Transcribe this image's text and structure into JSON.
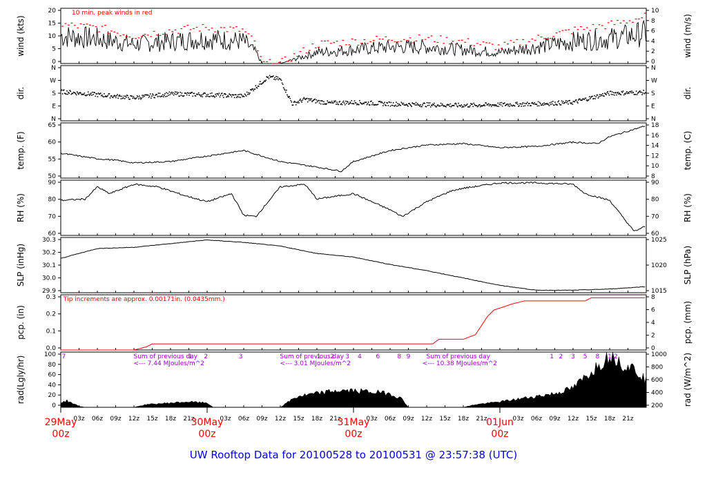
{
  "title": "UW Rooftop Data for 20100528  to  20100531 @ 23:57:38  (UTC)",
  "colors": {
    "axis": "#000000",
    "peak": "#ff0000",
    "pcp": "#ff0000",
    "accent_red": "#ff0000",
    "accent_purple": "#9900cc",
    "title_blue": "#0000ee"
  },
  "time_axis": {
    "hour_labels": [
      "03z",
      "06z",
      "09z",
      "12z",
      "15z",
      "18z",
      "21z"
    ],
    "day_labels": [
      {
        "day": "29May",
        "z": "00z"
      },
      {
        "day": "30May",
        "z": "00z"
      },
      {
        "day": "31May",
        "z": "00z"
      },
      {
        "day": "01Jun",
        "z": "00z"
      }
    ]
  },
  "chart_data": [
    {
      "id": "wind",
      "type": "line",
      "ylabel_left": "wind (kts)",
      "ylabel_right": "wind (m/s)",
      "annotation": "10 min. peak winds in red",
      "ylim": [
        0,
        20
      ],
      "yticks": [
        "0",
        "5",
        "10",
        "15",
        "20"
      ],
      "yticks_right": [
        "0",
        "2",
        "4",
        "6",
        "8",
        "10"
      ],
      "series": [
        {
          "name": "wind",
          "x": [
            0,
            6,
            12,
            18,
            24,
            30,
            32,
            33,
            36,
            42,
            48,
            54,
            60,
            66,
            72,
            78,
            84,
            90,
            96
          ],
          "y": [
            10,
            9,
            7,
            8,
            9,
            8,
            4,
            0,
            0,
            4,
            5,
            6,
            6,
            5,
            4,
            6,
            8,
            9,
            11
          ]
        },
        {
          "name": "10 min. peak winds",
          "x": [
            0,
            6,
            12,
            18,
            24,
            30,
            32,
            33,
            36,
            42,
            48,
            54,
            60,
            66,
            72,
            78,
            84,
            90,
            96
          ],
          "y": [
            14,
            13,
            10,
            12,
            13,
            12,
            7,
            0,
            0,
            7,
            8,
            9,
            9,
            8,
            6,
            9,
            12,
            14,
            17
          ]
        }
      ]
    },
    {
      "id": "direction",
      "type": "scatter",
      "ylabel_left": "dir.",
      "ylabel_right": "dir.",
      "ylim": [
        0,
        360
      ],
      "yticks": [
        "N",
        "E",
        "S",
        "W",
        "N"
      ],
      "series": [
        {
          "name": "dir",
          "x": [
            0,
            6,
            12,
            18,
            24,
            30,
            32,
            34,
            36,
            38,
            40,
            44,
            48,
            54,
            60,
            66,
            72,
            78,
            84,
            90,
            96
          ],
          "y": [
            190,
            170,
            150,
            175,
            170,
            160,
            220,
            285,
            270,
            110,
            140,
            115,
            120,
            110,
            105,
            100,
            105,
            110,
            120,
            180,
            185
          ]
        }
      ]
    },
    {
      "id": "temperature",
      "type": "line",
      "ylabel_left": "temp. (F)",
      "ylabel_right": "temp. (C)",
      "ylim": [
        45,
        65
      ],
      "yticks": [
        "50",
        "55",
        "60",
        "65"
      ],
      "yticks_right": [
        "8",
        "10",
        "12",
        "14",
        "16",
        "18"
      ],
      "series": [
        {
          "name": "temp",
          "x": [
            0,
            6,
            9,
            12,
            18,
            24,
            30,
            33,
            36,
            42,
            46,
            48,
            54,
            60,
            66,
            72,
            78,
            84,
            88,
            90,
            96
          ],
          "y": [
            54,
            52,
            51.5,
            50.5,
            51,
            53,
            55,
            53,
            51,
            49,
            47.5,
            51,
            55,
            57,
            57.5,
            56,
            56.5,
            58,
            57.5,
            60,
            64
          ]
        }
      ]
    },
    {
      "id": "rh",
      "type": "line",
      "ylabel_left": "RH (%)",
      "ylabel_right": "RH (%)",
      "ylim": [
        57,
        98
      ],
      "yticks": [
        "60",
        "70",
        "80",
        "90"
      ],
      "yticks_right": [
        "60",
        "70",
        "80",
        "90"
      ],
      "series": [
        {
          "name": "RH",
          "x": [
            0,
            4,
            6,
            8,
            12,
            16,
            20,
            24,
            28,
            30,
            32,
            36,
            40,
            42,
            48,
            54,
            56,
            60,
            64,
            66,
            72,
            78,
            84,
            86,
            90,
            94,
            96
          ],
          "y": [
            83,
            84,
            93,
            88,
            95,
            93,
            87,
            82,
            88,
            72,
            71,
            93,
            95,
            84,
            88,
            76,
            71,
            82,
            90,
            92,
            96,
            96,
            95,
            88,
            83,
            60,
            64
          ]
        }
      ]
    },
    {
      "id": "slp",
      "type": "line",
      "ylabel_left": "SLP (inHg)",
      "ylabel_right": "SLP (hPa)",
      "ylim": [
        29.9,
        30.35
      ],
      "yticks": [
        "29.9",
        "30.0",
        "30.1",
        "30.2",
        "30.3"
      ],
      "yticks_right": [
        "1015",
        "1020",
        "1025"
      ],
      "series": [
        {
          "name": "SLP",
          "x": [
            0,
            6,
            12,
            18,
            24,
            30,
            36,
            42,
            48,
            54,
            60,
            66,
            72,
            78,
            84,
            90,
            96
          ],
          "y": [
            30.18,
            30.26,
            30.27,
            30.3,
            30.33,
            30.31,
            30.28,
            30.22,
            30.19,
            30.13,
            30.08,
            30.02,
            29.96,
            29.92,
            29.92,
            29.93,
            29.95
          ]
        }
      ]
    },
    {
      "id": "precipitation",
      "type": "line",
      "ylabel_left": "pcp. (in)",
      "ylabel_right": "pcp. (mm)",
      "annotation": "Tip increments are approx. 0.00171in. (0.0435mm.)",
      "ylim": [
        0,
        0.36
      ],
      "yticks": [
        "0.0",
        "0.1",
        "0.2",
        "0.3"
      ],
      "yticks_right": [
        "0",
        "2",
        "4",
        "6",
        "8"
      ],
      "series": [
        {
          "name": "pcp",
          "x": [
            0,
            12,
            14,
            15,
            24,
            48,
            61,
            62,
            66,
            68,
            70,
            71,
            74,
            76,
            86,
            87,
            96
          ],
          "y": [
            0,
            0,
            0.02,
            0.04,
            0.04,
            0.04,
            0.04,
            0.07,
            0.07,
            0.1,
            0.22,
            0.26,
            0.3,
            0.32,
            0.32,
            0.34,
            0.34
          ]
        }
      ]
    },
    {
      "id": "radiation",
      "type": "area",
      "ylabel_left": "rad(Lgly/hr)",
      "ylabel_right": "rad (W/m^2)",
      "ylim": [
        0,
        100
      ],
      "yticks": [
        "0",
        "20",
        "40",
        "60",
        "80",
        "100"
      ],
      "yticks_right": [
        "200",
        "400",
        "600",
        "800",
        "1000"
      ],
      "series": [
        {
          "name": "rad",
          "x": [
            0,
            1,
            3,
            4,
            12,
            14,
            18,
            21,
            24,
            25,
            36,
            38,
            39,
            42,
            45,
            48,
            51,
            54,
            56,
            57,
            60,
            66,
            68,
            72,
            75,
            78,
            81,
            84,
            85,
            86,
            87,
            88,
            89,
            90,
            90.5,
            91,
            92,
            93,
            94,
            95,
            96
          ],
          "y": [
            8,
            12,
            2,
            0,
            0,
            5,
            8,
            10,
            8,
            0,
            0,
            15,
            20,
            25,
            30,
            30,
            28,
            25,
            15,
            0,
            0,
            0,
            5,
            10,
            15,
            20,
            25,
            35,
            45,
            55,
            65,
            75,
            85,
            95,
            100,
            90,
            80,
            75,
            70,
            60,
            50
          ]
        }
      ],
      "daily_sums": [
        {
          "label": "Sum of previous day",
          "value": "<--- 7.44 MJoules/m^2"
        },
        {
          "label": "Sum of previous day",
          "value": "<--- 3.01 MJoules/m^2"
        },
        {
          "label": "Sum of previous day",
          "value": "<--- 10.38 MJoules/m^2"
        }
      ],
      "top_hour_marks": [
        {
          "x": 0.5,
          "label": "7"
        },
        {
          "x": 21.2,
          "label": "1"
        },
        {
          "x": 23.8,
          "label": "2"
        },
        {
          "x": 29.5,
          "label": "3"
        },
        {
          "x": 42.3,
          "label": "1"
        },
        {
          "x": 44.5,
          "label": "2"
        },
        {
          "x": 47,
          "label": "3"
        },
        {
          "x": 49,
          "label": "4"
        },
        {
          "x": 52,
          "label": "6"
        },
        {
          "x": 55.5,
          "label": "8"
        },
        {
          "x": 57,
          "label": "9"
        },
        {
          "x": 80.5,
          "label": "1"
        },
        {
          "x": 82,
          "label": "2"
        },
        {
          "x": 84,
          "label": "3"
        },
        {
          "x": 86,
          "label": "5"
        },
        {
          "x": 88,
          "label": "8"
        },
        {
          "x": 90,
          "label": "1"
        },
        {
          "x": 91,
          "label": "2"
        }
      ]
    }
  ]
}
